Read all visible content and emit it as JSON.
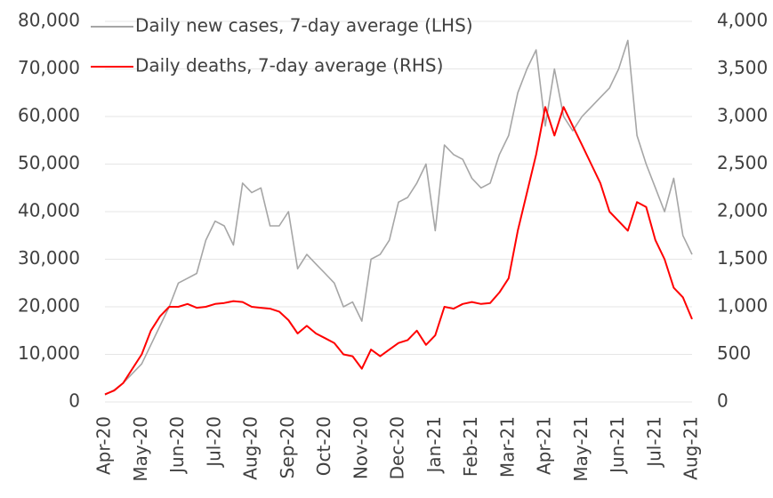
{
  "chart_data": {
    "type": "line",
    "categories": [
      "Apr-20",
      null,
      null,
      null,
      "May-20",
      null,
      null,
      null,
      "Jun-20",
      null,
      null,
      null,
      "Jul-20",
      null,
      null,
      null,
      "Aug-20",
      null,
      null,
      null,
      "Sep-20",
      null,
      null,
      null,
      "Oct-20",
      null,
      null,
      null,
      "Nov-20",
      null,
      null,
      null,
      "Dec-20",
      null,
      null,
      null,
      "Jan-21",
      null,
      null,
      null,
      "Feb-21",
      null,
      null,
      null,
      "Mar-21",
      null,
      null,
      null,
      "Apr-21",
      null,
      null,
      null,
      "May-21",
      null,
      null,
      null,
      "Jun-21",
      null,
      null,
      null,
      "Jul-21",
      null,
      null,
      null,
      "Aug-21"
    ],
    "series": [
      {
        "name": "Daily new cases, 7-day average (LHS)",
        "color": "#a6a6a6",
        "axis": "y",
        "values": [
          1500,
          2500,
          4000,
          6000,
          8000,
          12000,
          16000,
          20000,
          25000,
          26000,
          27000,
          34000,
          38000,
          37000,
          33000,
          46000,
          44000,
          45000,
          37000,
          37000,
          40000,
          28000,
          31000,
          29000,
          27000,
          25000,
          20000,
          21000,
          17000,
          30000,
          31000,
          34000,
          42000,
          43000,
          46000,
          50000,
          36000,
          54000,
          52000,
          51000,
          47000,
          45000,
          46000,
          52000,
          56000,
          65000,
          70000,
          74000,
          58000,
          70000,
          60000,
          57000,
          60000,
          62000,
          64000,
          66000,
          70000,
          76000,
          56000,
          50000,
          45000,
          40000,
          47000,
          35000,
          31000
        ]
      },
      {
        "name": "Daily deaths, 7-day average (RHS)",
        "color": "#ff0000",
        "axis": "y2",
        "values": [
          80,
          120,
          200,
          350,
          500,
          750,
          900,
          1000,
          1000,
          1030,
          990,
          1000,
          1030,
          1040,
          1060,
          1050,
          1000,
          990,
          980,
          950,
          860,
          720,
          800,
          720,
          670,
          620,
          500,
          480,
          350,
          550,
          480,
          550,
          620,
          650,
          750,
          600,
          700,
          1000,
          980,
          1030,
          1050,
          1030,
          1040,
          1150,
          1300,
          1800,
          2200,
          2600,
          3100,
          2800,
          3100,
          2900,
          2700,
          2500,
          2300,
          2000,
          1900,
          1800,
          2100,
          2050,
          1700,
          1500,
          1200,
          1100,
          870
        ]
      }
    ],
    "ylim": [
      0,
      80000
    ],
    "yticks": [
      0,
      {
        "value": 10000,
        "label": "10,000"
      },
      {
        "value": 20000,
        "label": "20,000"
      },
      {
        "value": 30000,
        "label": "30,000"
      },
      {
        "value": 40000,
        "label": "40,000"
      },
      {
        "value": 50000,
        "label": "50,000"
      },
      {
        "value": 60000,
        "label": "60,000"
      },
      {
        "value": 70000,
        "label": "70,000"
      },
      {
        "value": 80000,
        "label": "80,000"
      }
    ],
    "y2lim": [
      0,
      4000
    ],
    "y2ticks": [
      0,
      500,
      {
        "value": 1000,
        "label": "1,000"
      },
      {
        "value": 1500,
        "label": "1,500"
      },
      {
        "value": 2000,
        "label": "2,000"
      },
      {
        "value": 2500,
        "label": "2,500"
      },
      {
        "value": 3000,
        "label": "3,000"
      },
      {
        "value": 3500,
        "label": "3,500"
      },
      {
        "value": 4000,
        "label": "4,000"
      }
    ],
    "grid": true,
    "legend": "top-left"
  }
}
